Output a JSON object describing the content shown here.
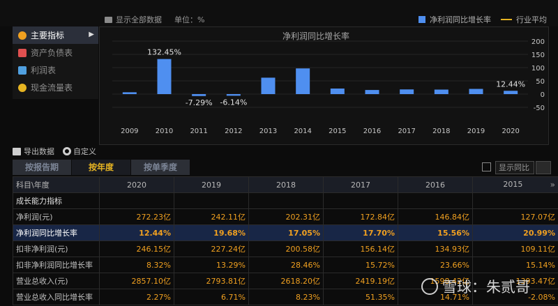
{
  "toolbar": {
    "show_all": "显示全部数据",
    "unit": "单位：%",
    "legend_series": "净利润同比增长率",
    "legend_industry": "行业平均"
  },
  "sidebar": {
    "items": [
      {
        "label": "主要指标",
        "icon": "gear-icon",
        "color": "#f0a020"
      },
      {
        "label": "资产负债表",
        "icon": "document-icon",
        "color": "#e05050"
      },
      {
        "label": "利润表",
        "icon": "cube-icon",
        "color": "#50a0e0"
      },
      {
        "label": "现金流量表",
        "icon": "coins-icon",
        "color": "#e6b422"
      }
    ],
    "active_arrow": "▶"
  },
  "chart_data": {
    "type": "bar",
    "title": "净利润同比增长率",
    "categories": [
      "2009",
      "2010",
      "2011",
      "2012",
      "2013",
      "2014",
      "2015",
      "2016",
      "2017",
      "2018",
      "2019",
      "2020"
    ],
    "series": [
      {
        "name": "净利润同比增长率",
        "values": [
          7,
          132.45,
          -7.29,
          -6.14,
          62,
          97,
          20.99,
          15.56,
          17.7,
          17.05,
          19.68,
          12.44
        ]
      }
    ],
    "data_labels": {
      "1": "132.45%",
      "2": "-7.29%",
      "3": "-6.14%",
      "11": "12.44%"
    },
    "yticks": [
      200,
      150,
      100,
      50,
      0,
      -50
    ],
    "ylim": [
      -50,
      200
    ],
    "bar_color": "#4f8ff0",
    "grid": true
  },
  "export": {
    "export_label": "导出数据",
    "custom_label": "自定义"
  },
  "tabs": [
    "按报告期",
    "按年度",
    "按单季度"
  ],
  "active_tab": 1,
  "yoy_select": "显示同比",
  "table": {
    "corner": "科目\\年度",
    "years": [
      "2020",
      "2019",
      "2018",
      "2017",
      "2016",
      "2015"
    ],
    "expand": "»",
    "section": "成长能力指标",
    "rows": [
      {
        "label": "净利润(元)",
        "values": [
          "272.23亿",
          "242.11亿",
          "202.31亿",
          "172.84亿",
          "146.84亿",
          "127.07亿"
        ],
        "hl": false,
        "bold": false
      },
      {
        "label": "净利润同比增长率",
        "values": [
          "12.44%",
          "19.68%",
          "17.05%",
          "17.70%",
          "15.56%",
          "20.99%"
        ],
        "hl": true,
        "bold": true
      },
      {
        "label": "扣非净利润(元)",
        "values": [
          "246.15亿",
          "227.24亿",
          "200.58亿",
          "156.14亿",
          "134.93亿",
          "109.11亿"
        ],
        "hl": false,
        "bold": false
      },
      {
        "label": "扣非净利润同比增长率",
        "values": [
          "8.32%",
          "13.29%",
          "28.46%",
          "15.72%",
          "23.66%",
          "15.14%"
        ],
        "hl": false,
        "bold": false
      },
      {
        "label": "营业总收入(元)",
        "values": [
          "2857.10亿",
          "2793.81亿",
          "2618.20亿",
          "2419.19亿",
          "1598.42亿",
          "1393.47亿"
        ],
        "hl": false,
        "bold": false
      },
      {
        "label": "营业总收入同比增长率",
        "values": [
          "2.27%",
          "6.71%",
          "8.23%",
          "51.35%",
          "14.71%",
          "-2.08%"
        ],
        "hl": false,
        "bold": false
      }
    ]
  },
  "watermark": "雪球：朱贰哥"
}
